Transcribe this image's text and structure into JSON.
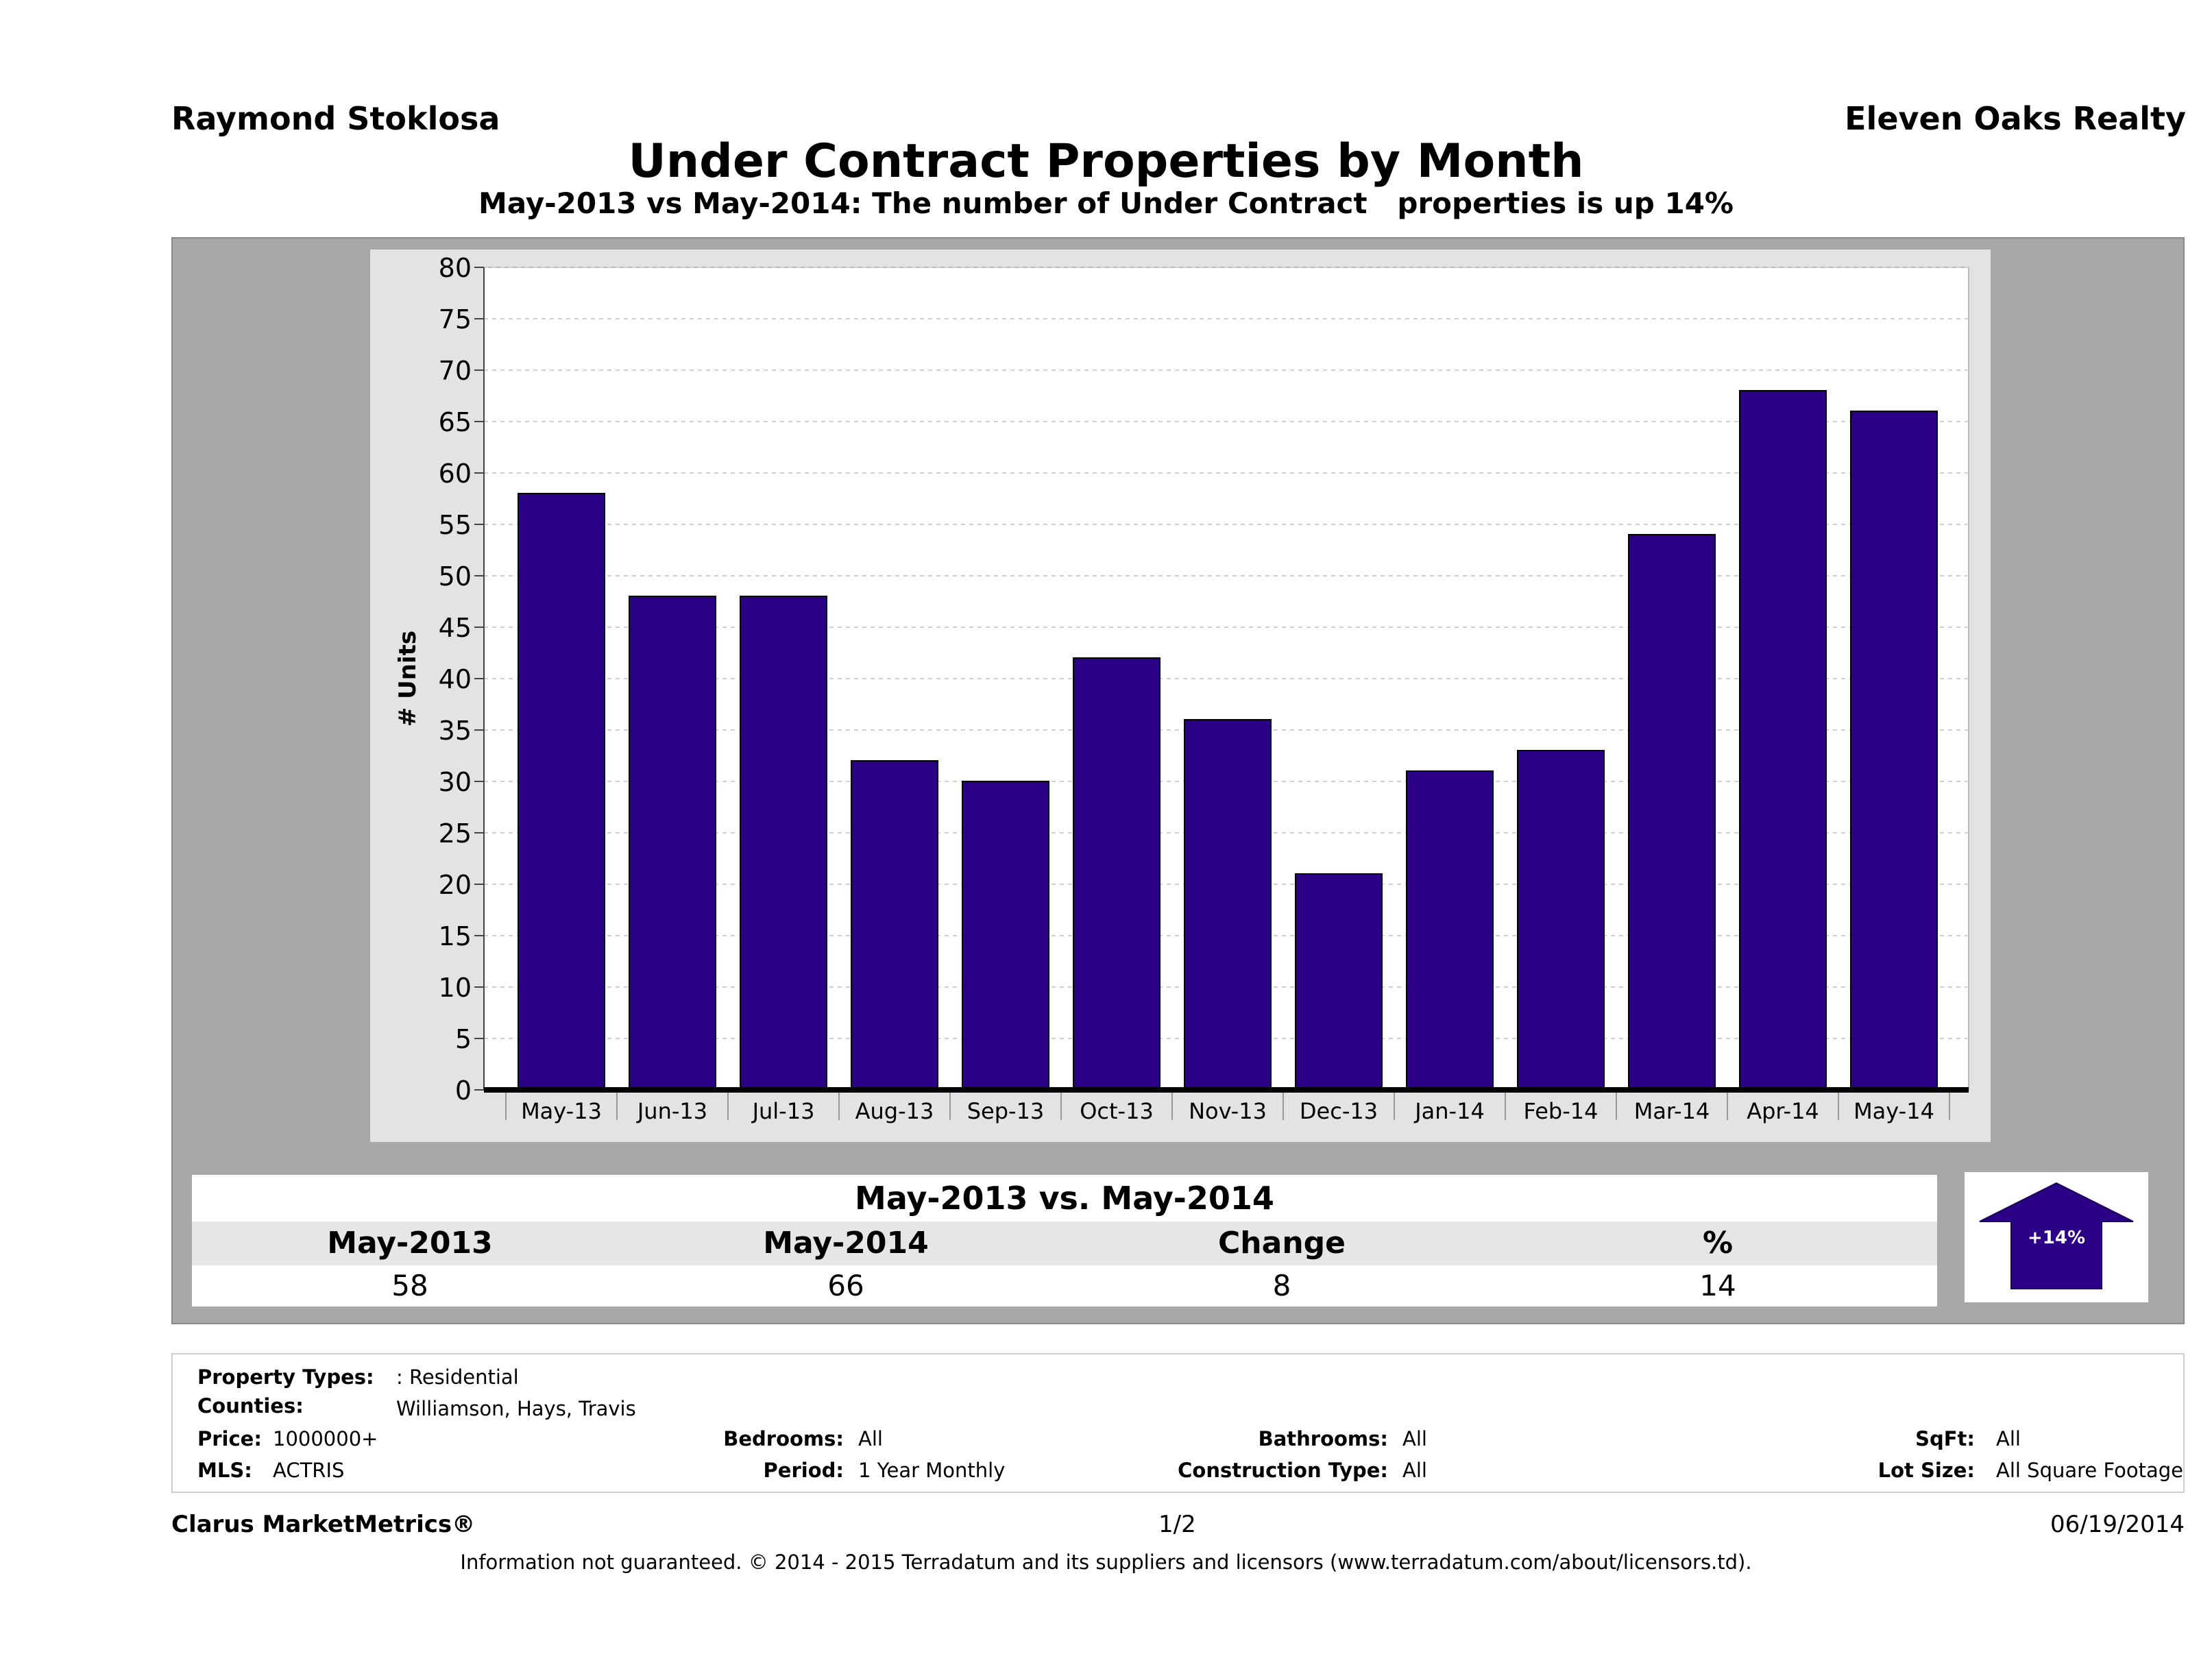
{
  "header": {
    "agent": "Raymond Stoklosa",
    "company": "Eleven Oaks Realty",
    "title": "Under Contract Properties by Month",
    "subtitle": "May-2013 vs May-2014: The number of Under Contract   properties is up 14%"
  },
  "chart_data": {
    "type": "bar",
    "categories": [
      "May-13",
      "Jun-13",
      "Jul-13",
      "Aug-13",
      "Sep-13",
      "Oct-13",
      "Nov-13",
      "Dec-13",
      "Jan-14",
      "Feb-14",
      "Mar-14",
      "Apr-14",
      "May-14"
    ],
    "values": [
      58,
      48,
      48,
      32,
      30,
      42,
      36,
      21,
      31,
      33,
      54,
      68,
      66
    ],
    "ylabel": "# Units",
    "xlabel": "",
    "ylim": [
      0,
      80
    ],
    "yticks": [
      0,
      5,
      10,
      15,
      20,
      25,
      30,
      35,
      40,
      45,
      50,
      55,
      60,
      65,
      70,
      75,
      80
    ],
    "grid": true,
    "bar_color": "#2b0087"
  },
  "summary": {
    "title": "May-2013 vs. May-2014",
    "headers": [
      "May-2013",
      "May-2014",
      "Change",
      "%"
    ],
    "values": [
      "58",
      "66",
      "8",
      "14"
    ],
    "badge": "+14%",
    "badge_color": "#2b0087"
  },
  "filters": {
    "property_types_label": "Property Types:",
    "property_types_value": ": Residential",
    "counties_label": "Counties:",
    "counties_value": "Williamson, Hays, Travis",
    "price_label": "Price:",
    "price_value": "1000000+",
    "mls_label": "MLS:",
    "mls_value": "ACTRIS",
    "bedrooms_label": "Bedrooms:",
    "bedrooms_value": "All",
    "period_label": "Period:",
    "period_value": "1 Year Monthly",
    "bathrooms_label": "Bathrooms:",
    "bathrooms_value": "All",
    "construction_label": "Construction Type:",
    "construction_value": "All",
    "sqft_label": "SqFt:",
    "sqft_value": "All",
    "lotsize_label": "Lot Size:",
    "lotsize_value": "All Square Footage"
  },
  "footer": {
    "brand": "Clarus MarketMetrics®",
    "page": "1/2",
    "date": "06/19/2014",
    "disclaimer": "Information not guaranteed. © 2014 - 2015 Terradatum and its suppliers and licensors (www.terradatum.com/about/licensors.td)."
  }
}
